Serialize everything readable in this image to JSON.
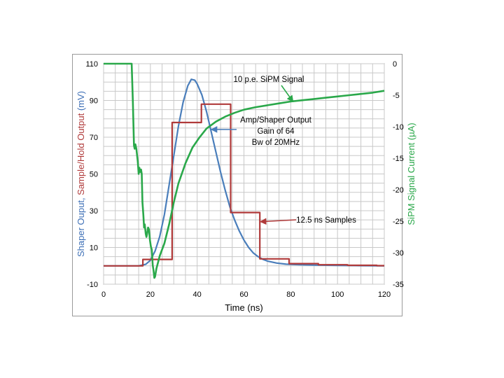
{
  "chart_data": {
    "type": "line",
    "xlabel": "Time (ns)",
    "ylabel_left_parts": [
      {
        "text": "Shaper Ouput, ",
        "color": "#3d6fb6"
      },
      {
        "text": "Sample/Hold Output",
        "color": "#b03a3a"
      },
      {
        "text": " (mV)",
        "color": "#3d6fb6"
      }
    ],
    "ylabel_right": "SiPM Signal Current (µA)",
    "xlim": [
      0,
      120
    ],
    "ylim_left": [
      -10,
      110
    ],
    "ylim_right": [
      -35,
      0
    ],
    "x_ticks": [
      0,
      20,
      40,
      60,
      80,
      100,
      120
    ],
    "y_left_ticks": [
      -10,
      10,
      30,
      50,
      70,
      90,
      110
    ],
    "y_right_ticks": [
      0,
      -5,
      -10,
      -15,
      -20,
      -25,
      -30,
      -35
    ],
    "grid": true,
    "series": [
      {
        "name": "Amp/Shaper Output",
        "axis": "left",
        "color": "#4a7ebb",
        "x": [
          0,
          15,
          18,
          20,
          22,
          24,
          26,
          28,
          30,
          32,
          34,
          36,
          37.5,
          39,
          40,
          42,
          44,
          46,
          48,
          50,
          52,
          54,
          56,
          58,
          60,
          62,
          64,
          66,
          68,
          70,
          74,
          78,
          84,
          90,
          100,
          110,
          120
        ],
        "y": [
          0,
          0,
          0.8,
          3,
          8,
          16,
          28,
          44,
          60,
          76,
          89,
          98,
          101.5,
          101,
          99,
          93,
          84,
          73,
          62,
          51,
          41,
          32,
          25,
          19,
          14,
          10,
          7,
          5,
          3.6,
          2.6,
          1.5,
          0.9,
          0.6,
          0.4,
          0.2,
          0.1,
          0
        ]
      },
      {
        "name": "Sample/Hold Output",
        "axis": "left",
        "color": "#b03a3a",
        "x": [
          0,
          16.8,
          16.8,
          29.3,
          29.3,
          41.8,
          41.8,
          54.3,
          54.3,
          66.8,
          66.8,
          79.3,
          79.3,
          91.8,
          91.8,
          104.3,
          104.3,
          116.8,
          116.8,
          120
        ],
        "y": [
          0,
          0,
          3.5,
          3.5,
          78,
          78,
          88,
          88,
          29,
          29,
          3.8,
          3.8,
          1.2,
          1.2,
          0.6,
          0.6,
          0.3,
          0.3,
          0.1,
          0.1
        ]
      },
      {
        "name": "10 p.e. SiPM Signal",
        "axis": "right",
        "color": "#2aa84a",
        "x": [
          0,
          12,
          12.5,
          13,
          13.3,
          13.6,
          14,
          14.3,
          14.6,
          15,
          15.3,
          15.6,
          16,
          16.3,
          16.6,
          17,
          17.3,
          17.6,
          18,
          18.3,
          18.6,
          19,
          19.4,
          19.8,
          20.2,
          20.6,
          21,
          21.3,
          21.7,
          22,
          22.6,
          23.3,
          24,
          26,
          28,
          30,
          32,
          35,
          38,
          41,
          44,
          48,
          52,
          56,
          60,
          65,
          70,
          75,
          80,
          85,
          90,
          95,
          100,
          105,
          110,
          115,
          120
        ],
        "y": [
          0,
          0,
          -6,
          -13,
          -13.5,
          -12.8,
          -13.5,
          -14.5,
          -15.5,
          -17.5,
          -16.5,
          -17.2,
          -16.8,
          -17.5,
          -22,
          -24,
          -26,
          -25.5,
          -27,
          -27.5,
          -27,
          -26,
          -26.3,
          -28,
          -29,
          -29.5,
          -32,
          -32.7,
          -34,
          -33.8,
          -32.5,
          -31.5,
          -30.5,
          -28.5,
          -25.5,
          -22,
          -19,
          -15.8,
          -13.3,
          -11.7,
          -10.3,
          -9.2,
          -8.4,
          -7.8,
          -7.3,
          -6.9,
          -6.6,
          -6.3,
          -6.0,
          -5.8,
          -5.6,
          -5.4,
          -5.2,
          -5.0,
          -4.8,
          -4.6,
          -4.3
        ]
      }
    ],
    "annotations": [
      {
        "text": "10 p.e. SiPM Signal",
        "color": "#2aa84a",
        "target": [
          81,
          89.3
        ]
      },
      {
        "text": "Amp/Shaper Output",
        "color": "#4a7ebb",
        "target": [
          46,
          74.2
        ]
      },
      {
        "text": "Gain of 64",
        "color": "",
        "target": null
      },
      {
        "text": "Bw of 20MHz",
        "color": "",
        "target": null
      },
      {
        "text": "12.5 ns Samples",
        "color": "#b03a3a",
        "target": [
          67,
          24
        ]
      }
    ]
  }
}
